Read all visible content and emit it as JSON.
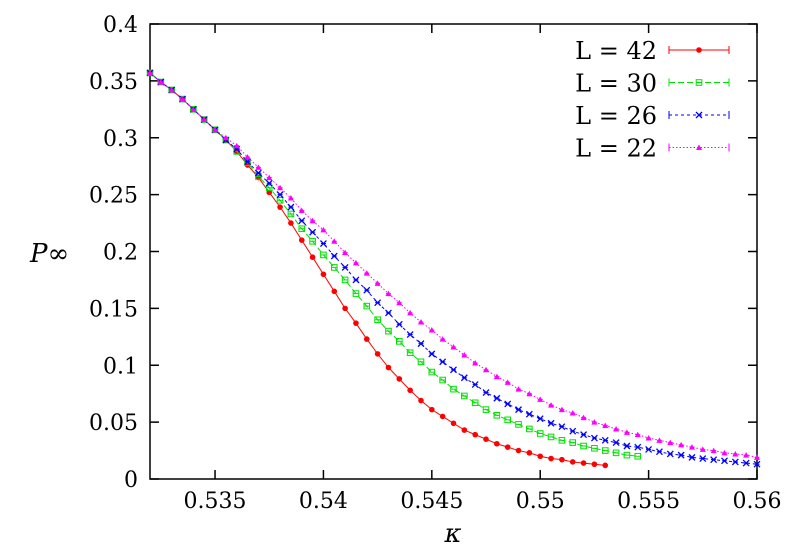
{
  "chart_data": {
    "type": "line",
    "title": "",
    "xlabel": "κ",
    "ylabel": "P∞",
    "xlim": [
      0.532,
      0.56
    ],
    "ylim": [
      0,
      0.4
    ],
    "xticks": [
      "0.535",
      "0.54",
      "0.545",
      "0.55",
      "0.555",
      "0.56"
    ],
    "xtick_values": [
      0.535,
      0.54,
      0.545,
      0.55,
      0.555,
      0.56
    ],
    "yticks": [
      "0",
      "0.05",
      "0.1",
      "0.15",
      "0.2",
      "0.25",
      "0.3",
      "0.35",
      "0.4"
    ],
    "ytick_values": [
      0,
      0.05,
      0.1,
      0.15,
      0.2,
      0.25,
      0.3,
      0.35,
      0.4
    ],
    "grid": false,
    "legend_position": "top-right",
    "x_step": 0.0005,
    "series": [
      {
        "name": "L = 42",
        "color": "#ff0000",
        "marker": "filled-circle",
        "dash": "solid",
        "x_start": 0.532,
        "values": [
          0.357,
          0.349,
          0.342,
          0.334,
          0.325,
          0.316,
          0.307,
          0.298,
          0.288,
          0.276,
          0.265,
          0.252,
          0.239,
          0.225,
          0.21,
          0.195,
          0.18,
          0.165,
          0.15,
          0.137,
          0.123,
          0.11,
          0.098,
          0.088,
          0.078,
          0.069,
          0.061,
          0.055,
          0.049,
          0.043,
          0.039,
          0.035,
          0.031,
          0.028,
          0.025,
          0.023,
          0.02,
          0.018,
          0.017,
          0.015,
          0.014,
          0.013,
          0.012
        ]
      },
      {
        "name": "L = 30",
        "color": "#00e000",
        "marker": "open-square",
        "dash": "dashed",
        "x_start": 0.532,
        "values": [
          0.357,
          0.349,
          0.342,
          0.334,
          0.325,
          0.316,
          0.307,
          0.298,
          0.288,
          0.278,
          0.266,
          0.256,
          0.245,
          0.233,
          0.22,
          0.209,
          0.197,
          0.186,
          0.175,
          0.163,
          0.152,
          0.14,
          0.13,
          0.121,
          0.111,
          0.103,
          0.094,
          0.087,
          0.079,
          0.073,
          0.067,
          0.061,
          0.056,
          0.052,
          0.048,
          0.044,
          0.04,
          0.037,
          0.034,
          0.032,
          0.029,
          0.027,
          0.025,
          0.023,
          0.021,
          0.02
        ]
      },
      {
        "name": "L = 26",
        "color": "#0000ff",
        "marker": "cross",
        "dash": "short-dashed",
        "x_start": 0.532,
        "values": [
          0.357,
          0.349,
          0.342,
          0.334,
          0.325,
          0.316,
          0.307,
          0.298,
          0.29,
          0.279,
          0.269,
          0.26,
          0.25,
          0.239,
          0.227,
          0.217,
          0.207,
          0.196,
          0.186,
          0.175,
          0.166,
          0.155,
          0.146,
          0.136,
          0.127,
          0.119,
          0.11,
          0.103,
          0.096,
          0.089,
          0.083,
          0.076,
          0.071,
          0.066,
          0.061,
          0.057,
          0.053,
          0.049,
          0.046,
          0.042,
          0.039,
          0.036,
          0.034,
          0.032,
          0.029,
          0.028,
          0.026,
          0.024,
          0.022,
          0.021,
          0.019,
          0.018,
          0.017,
          0.016,
          0.015,
          0.014,
          0.013
        ]
      },
      {
        "name": "L = 22",
        "color": "#ff00ff",
        "marker": "filled-triangle",
        "dash": "dotted",
        "x_start": 0.532,
        "values": [
          0.357,
          0.349,
          0.342,
          0.334,
          0.325,
          0.316,
          0.307,
          0.3,
          0.293,
          0.283,
          0.274,
          0.265,
          0.256,
          0.247,
          0.236,
          0.227,
          0.219,
          0.209,
          0.199,
          0.19,
          0.181,
          0.172,
          0.163,
          0.155,
          0.146,
          0.138,
          0.131,
          0.123,
          0.116,
          0.109,
          0.102,
          0.096,
          0.09,
          0.085,
          0.079,
          0.075,
          0.07,
          0.065,
          0.061,
          0.058,
          0.054,
          0.05,
          0.047,
          0.044,
          0.041,
          0.039,
          0.036,
          0.034,
          0.032,
          0.03,
          0.028,
          0.026,
          0.025,
          0.023,
          0.022,
          0.021,
          0.019
        ]
      }
    ]
  }
}
